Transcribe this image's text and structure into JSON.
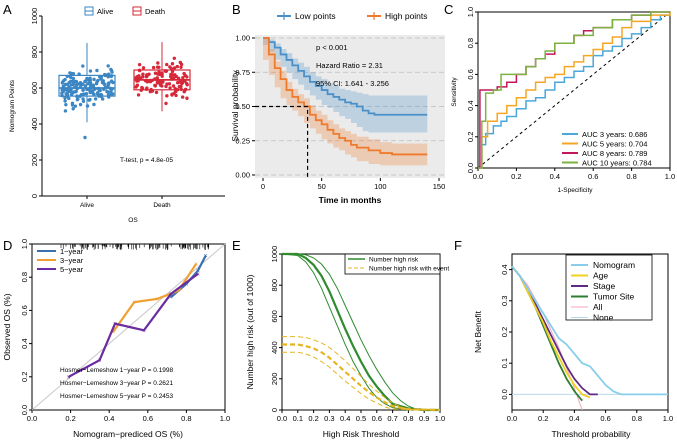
{
  "figure": {
    "panels": [
      "A",
      "B",
      "C",
      "D",
      "E",
      "F"
    ]
  },
  "chart_data": [
    {
      "id": "A",
      "type": "boxplot",
      "ylabel": "Nomogram Points",
      "xlabel": "OS",
      "categories": [
        "Alive",
        "Death"
      ],
      "legend": [
        "Alive",
        "Death"
      ],
      "colors": [
        "#3b86c3",
        "#d62839"
      ],
      "ylim": [
        0,
        1000
      ],
      "yticks": [
        "0",
        "200",
        "400",
        "600",
        "800",
        "1000"
      ],
      "boxes": [
        {
          "name": "Alive",
          "min": 410,
          "q1": 555,
          "median": 600,
          "q3": 670,
          "max": 850
        },
        {
          "name": "Death",
          "min": 470,
          "q1": 590,
          "median": 645,
          "q3": 700,
          "max": 855
        }
      ],
      "annotation": "T-test, p = 4.8e-05"
    },
    {
      "id": "B",
      "type": "line",
      "subtype": "kaplan-meier",
      "xlabel": "Time in months",
      "ylabel": "Survival probability",
      "xlim": [
        0,
        150
      ],
      "ylim": [
        0,
        1
      ],
      "xticks": [
        "0",
        "50",
        "100",
        "150"
      ],
      "yticks": [
        "0.00",
        "0.25",
        "0.50",
        "0.75",
        "1.00"
      ],
      "legend": [
        "Low points",
        "High points"
      ],
      "colors": [
        "#4a90c8",
        "#ef7a2c"
      ],
      "series": [
        {
          "name": "Low points",
          "x": [
            0,
            5,
            10,
            15,
            20,
            25,
            30,
            35,
            40,
            45,
            50,
            55,
            60,
            65,
            70,
            75,
            80,
            85,
            90,
            95,
            100,
            110,
            120,
            130,
            140
          ],
          "y": [
            1.0,
            0.97,
            0.93,
            0.88,
            0.84,
            0.8,
            0.76,
            0.72,
            0.68,
            0.65,
            0.62,
            0.59,
            0.57,
            0.55,
            0.53,
            0.52,
            0.5,
            0.47,
            0.45,
            0.44,
            0.44,
            0.44,
            0.44,
            0.44,
            0.44
          ],
          "lower": [
            1.0,
            0.95,
            0.9,
            0.84,
            0.79,
            0.75,
            0.7,
            0.66,
            0.62,
            0.58,
            0.55,
            0.51,
            0.49,
            0.46,
            0.43,
            0.41,
            0.38,
            0.35,
            0.32,
            0.31,
            0.31,
            0.31,
            0.31,
            0.31,
            0.31
          ],
          "upper": [
            1.0,
            0.99,
            0.96,
            0.92,
            0.89,
            0.85,
            0.82,
            0.79,
            0.75,
            0.72,
            0.7,
            0.67,
            0.65,
            0.63,
            0.62,
            0.61,
            0.6,
            0.59,
            0.58,
            0.58,
            0.58,
            0.58,
            0.58,
            0.58,
            0.58
          ]
        },
        {
          "name": "High points",
          "x": [
            0,
            5,
            10,
            15,
            20,
            25,
            30,
            35,
            40,
            45,
            50,
            55,
            60,
            65,
            70,
            75,
            80,
            90,
            100,
            110,
            120,
            130,
            140
          ],
          "y": [
            1.0,
            0.88,
            0.78,
            0.7,
            0.62,
            0.57,
            0.53,
            0.5,
            0.44,
            0.4,
            0.37,
            0.33,
            0.3,
            0.27,
            0.25,
            0.22,
            0.2,
            0.18,
            0.16,
            0.15,
            0.15,
            0.15,
            0.15
          ],
          "lower": [
            1.0,
            0.84,
            0.73,
            0.64,
            0.56,
            0.51,
            0.47,
            0.43,
            0.38,
            0.34,
            0.3,
            0.26,
            0.23,
            0.2,
            0.18,
            0.15,
            0.13,
            0.1,
            0.08,
            0.07,
            0.07,
            0.07,
            0.07
          ],
          "upper": [
            1.0,
            0.92,
            0.83,
            0.76,
            0.68,
            0.63,
            0.59,
            0.56,
            0.51,
            0.47,
            0.44,
            0.4,
            0.37,
            0.34,
            0.32,
            0.3,
            0.28,
            0.26,
            0.24,
            0.23,
            0.23,
            0.23,
            0.23
          ]
        }
      ],
      "median_marker": {
        "x": 38,
        "y": 0.5
      },
      "annotations": [
        "p < 0.001",
        "Hazard Ratio = 2.31",
        "95% CI: 1.641 - 3.256"
      ]
    },
    {
      "id": "C",
      "type": "line",
      "subtype": "roc",
      "xlabel": "1-Specificity",
      "ylabel": "Sensitivity",
      "xlim": [
        0,
        1
      ],
      "ylim": [
        0,
        1
      ],
      "xticks": [
        "0.0",
        "0.2",
        "0.4",
        "0.6",
        "0.8",
        "1.0"
      ],
      "yticks": [
        "0.0",
        "0.2",
        "0.4",
        "0.6",
        "0.8",
        "1.0"
      ],
      "legend": [
        "AUC 3 years: 0.686",
        "AUC 5 years: 0.704",
        "AUC 8 years: 0.789",
        "AUC 10 years: 0.784"
      ],
      "series": [
        {
          "name": "AUC 3 years: 0.686",
          "color": "#4aa7d8",
          "x": [
            0,
            0.02,
            0.04,
            0.08,
            0.12,
            0.15,
            0.2,
            0.25,
            0.3,
            0.35,
            0.4,
            0.45,
            0.5,
            0.55,
            0.6,
            0.65,
            0.7,
            0.75,
            0.8,
            0.85,
            0.9,
            0.95,
            1.0
          ],
          "y": [
            0,
            0.15,
            0.22,
            0.27,
            0.3,
            0.33,
            0.38,
            0.43,
            0.45,
            0.5,
            0.55,
            0.58,
            0.62,
            0.65,
            0.72,
            0.75,
            0.78,
            0.83,
            0.86,
            0.9,
            0.95,
            0.98,
            1.0
          ]
        },
        {
          "name": "AUC 5 years: 0.704",
          "color": "#f5a623",
          "x": [
            0,
            0.02,
            0.05,
            0.1,
            0.15,
            0.2,
            0.25,
            0.3,
            0.35,
            0.4,
            0.45,
            0.5,
            0.55,
            0.6,
            0.65,
            0.7,
            0.75,
            0.8,
            0.9,
            1.0
          ],
          "y": [
            0,
            0.2,
            0.3,
            0.35,
            0.4,
            0.45,
            0.5,
            0.55,
            0.58,
            0.6,
            0.65,
            0.68,
            0.72,
            0.76,
            0.8,
            0.84,
            0.9,
            0.94,
            0.98,
            1.0
          ]
        },
        {
          "name": "AUC 8 years: 0.789",
          "color": "#c2185b",
          "x": [
            0,
            0.01,
            0.05,
            0.1,
            0.15,
            0.2,
            0.25,
            0.3,
            0.35,
            0.4,
            0.45,
            0.5,
            0.55,
            0.6,
            0.7,
            0.8,
            0.9,
            1.0
          ],
          "y": [
            0,
            0.5,
            0.5,
            0.52,
            0.55,
            0.6,
            0.65,
            0.7,
            0.73,
            0.8,
            0.8,
            0.85,
            0.88,
            0.9,
            0.95,
            0.98,
            1.0,
            1.0
          ]
        },
        {
          "name": "AUC 10 years: 0.784",
          "color": "#7cb342",
          "x": [
            0,
            0.02,
            0.04,
            0.08,
            0.12,
            0.2,
            0.25,
            0.3,
            0.35,
            0.4,
            0.5,
            0.6,
            0.7,
            0.8,
            0.9,
            1.0
          ],
          "y": [
            0,
            0.3,
            0.48,
            0.5,
            0.6,
            0.6,
            0.65,
            0.7,
            0.75,
            0.8,
            0.85,
            0.9,
            0.95,
            0.98,
            1.0,
            1.0
          ]
        }
      ]
    },
    {
      "id": "D",
      "type": "line",
      "subtype": "calibration",
      "xlabel": "Nomogram−prediced OS (%)",
      "ylabel": "Observed OS (%)",
      "xlim": [
        0,
        1
      ],
      "ylim": [
        0,
        1
      ],
      "xticks": [
        "0.0",
        "0.2",
        "0.4",
        "0.6",
        "0.8",
        "1.0"
      ],
      "yticks": [
        "0.0",
        "0.2",
        "0.4",
        "0.6",
        "0.8",
        "1.0"
      ],
      "legend": [
        "1−year",
        "3−year",
        "5−year"
      ],
      "series": [
        {
          "name": "1−year",
          "color": "#3a6fb0",
          "x": [
            0.72,
            0.8,
            0.86,
            0.9
          ],
          "y": [
            0.68,
            0.76,
            0.84,
            0.93
          ]
        },
        {
          "name": "3−year",
          "color": "#f0a030",
          "x": [
            0.42,
            0.53,
            0.65,
            0.76,
            0.85
          ],
          "y": [
            0.47,
            0.65,
            0.67,
            0.72,
            0.88
          ]
        },
        {
          "name": "5−year",
          "color": "#6a2ca0",
          "x": [
            0.19,
            0.35,
            0.43,
            0.58,
            0.72,
            0.86
          ],
          "y": [
            0.2,
            0.3,
            0.52,
            0.48,
            0.7,
            0.82
          ]
        }
      ],
      "annotations": [
        "Hosmer−Lemeshow 1−year P = 0.1998",
        "Hosmer−Lemeshow 3−year P = 0.2621",
        "Hosmer−Lemeshow 5−year P = 0.2453"
      ]
    },
    {
      "id": "E",
      "type": "line",
      "subtype": "clinical-impact",
      "xlabel": "High Risk Threshold",
      "ylabel": "Number high risk (out of 1000)",
      "xlim": [
        0,
        1
      ],
      "ylim": [
        0,
        1000
      ],
      "xticks": [
        "0.0",
        "0.1",
        "0.2",
        "0.3",
        "0.4",
        "0.5",
        "0.6",
        "0.7",
        "0.8",
        "0.9",
        "1.0"
      ],
      "yticks": [
        "0",
        "200",
        "400",
        "600",
        "800",
        "1000"
      ],
      "legend": [
        "Number high risk",
        "Number high risk with event"
      ],
      "series": [
        {
          "name": "Number high risk",
          "color": "#2e8b2e",
          "x": [
            0,
            0.1,
            0.15,
            0.2,
            0.25,
            0.3,
            0.35,
            0.4,
            0.45,
            0.5,
            0.55,
            0.6,
            0.65,
            0.7,
            0.8,
            0.9,
            1.0
          ],
          "y": [
            1000,
            1000,
            975,
            930,
            860,
            760,
            640,
            520,
            410,
            310,
            220,
            150,
            90,
            40,
            10,
            0,
            0
          ]
        },
        {
          "name": "Number high risk (CI lower)",
          "color": "#2e8b2e",
          "x": [
            0,
            0.1,
            0.15,
            0.2,
            0.25,
            0.3,
            0.35,
            0.4,
            0.45,
            0.5,
            0.55,
            0.6,
            0.65,
            0.7,
            0.8,
            1.0
          ],
          "y": [
            1000,
            990,
            950,
            880,
            780,
            660,
            540,
            420,
            310,
            220,
            140,
            80,
            40,
            15,
            0,
            0
          ]
        },
        {
          "name": "Number high risk (CI upper)",
          "color": "#2e8b2e",
          "x": [
            0,
            0.1,
            0.15,
            0.2,
            0.25,
            0.3,
            0.35,
            0.4,
            0.45,
            0.5,
            0.55,
            0.6,
            0.65,
            0.7,
            0.75,
            0.8,
            0.85,
            0.9,
            1.0
          ],
          "y": [
            1000,
            1000,
            995,
            975,
            935,
            870,
            780,
            670,
            560,
            450,
            350,
            260,
            180,
            110,
            60,
            25,
            5,
            0,
            0
          ]
        },
        {
          "name": "Number high risk with event",
          "color": "#e6b422",
          "x": [
            0,
            0.1,
            0.15,
            0.2,
            0.25,
            0.3,
            0.35,
            0.4,
            0.45,
            0.5,
            0.55,
            0.6,
            0.65,
            0.7,
            0.8,
            1.0
          ],
          "y": [
            420,
            420,
            410,
            395,
            370,
            335,
            290,
            245,
            200,
            155,
            115,
            80,
            50,
            25,
            5,
            0
          ]
        },
        {
          "name": "Number high risk with event (CI lower)",
          "color": "#e6b422",
          "x": [
            0,
            0.1,
            0.15,
            0.2,
            0.25,
            0.3,
            0.35,
            0.4,
            0.45,
            0.5,
            0.55,
            0.6,
            0.65,
            0.7,
            1.0
          ],
          "y": [
            370,
            370,
            360,
            340,
            310,
            275,
            230,
            185,
            145,
            105,
            70,
            45,
            20,
            5,
            0
          ]
        },
        {
          "name": "Number high risk with event (CI upper)",
          "color": "#e6b422",
          "x": [
            0,
            0.1,
            0.15,
            0.2,
            0.25,
            0.3,
            0.35,
            0.4,
            0.45,
            0.5,
            0.55,
            0.6,
            0.65,
            0.7,
            0.75,
            0.8,
            1.0
          ],
          "y": [
            470,
            470,
            465,
            450,
            430,
            400,
            360,
            315,
            265,
            215,
            165,
            120,
            80,
            45,
            20,
            5,
            0
          ]
        }
      ]
    },
    {
      "id": "F",
      "type": "line",
      "subtype": "decision-curve",
      "xlabel": "Threshold probability",
      "ylabel": "Net Benefit",
      "xlim": [
        0,
        1
      ],
      "ylim": [
        -0.05,
        0.45
      ],
      "xticks": [
        "0.0",
        "0.2",
        "0.4",
        "0.6",
        "0.8",
        "1.0"
      ],
      "yticks": [
        "0.0",
        "0.1",
        "0.2",
        "0.3",
        "0.4"
      ],
      "legend": [
        "Nomogram",
        "Age",
        "Stage",
        "Tumor Site",
        "All",
        "None"
      ],
      "series": [
        {
          "name": "Nomogram",
          "color": "#87ceeb",
          "x": [
            0,
            0.05,
            0.1,
            0.15,
            0.2,
            0.25,
            0.3,
            0.35,
            0.4,
            0.45,
            0.5,
            0.55,
            0.6,
            0.65,
            0.7,
            0.8,
            1.0
          ],
          "y": [
            0.41,
            0.38,
            0.34,
            0.3,
            0.26,
            0.22,
            0.18,
            0.16,
            0.13,
            0.1,
            0.09,
            0.06,
            0.03,
            0.01,
            0.0,
            0.0,
            0.0
          ]
        },
        {
          "name": "Age",
          "color": "#f0d020",
          "x": [
            0,
            0.05,
            0.1,
            0.15,
            0.2,
            0.25,
            0.3,
            0.35,
            0.4,
            0.45,
            0.5
          ],
          "y": [
            0.41,
            0.38,
            0.33,
            0.28,
            0.23,
            0.17,
            0.12,
            0.07,
            0.03,
            0.0,
            -0.01
          ]
        },
        {
          "name": "Stage",
          "color": "#5e2a84",
          "x": [
            0,
            0.05,
            0.1,
            0.15,
            0.2,
            0.25,
            0.3,
            0.35,
            0.4,
            0.45,
            0.5,
            0.55
          ],
          "y": [
            0.41,
            0.38,
            0.34,
            0.29,
            0.24,
            0.19,
            0.14,
            0.09,
            0.05,
            0.02,
            0.0,
            0.0
          ]
        },
        {
          "name": "Tumor Site",
          "color": "#2e7d32",
          "x": [
            0,
            0.05,
            0.1,
            0.15,
            0.2,
            0.25,
            0.3,
            0.35,
            0.4,
            0.45
          ],
          "y": [
            0.41,
            0.38,
            0.33,
            0.28,
            0.22,
            0.16,
            0.1,
            0.05,
            0.01,
            -0.02
          ]
        },
        {
          "name": "All",
          "color": "#f4a6b7",
          "x": [
            0,
            0.1,
            0.2,
            0.3,
            0.4,
            0.45
          ],
          "y": [
            0.41,
            0.35,
            0.26,
            0.15,
            0.02,
            -0.05
          ]
        },
        {
          "name": "None",
          "color": "#b8d8ec",
          "x": [
            0,
            1
          ],
          "y": [
            0,
            0
          ]
        }
      ]
    }
  ]
}
